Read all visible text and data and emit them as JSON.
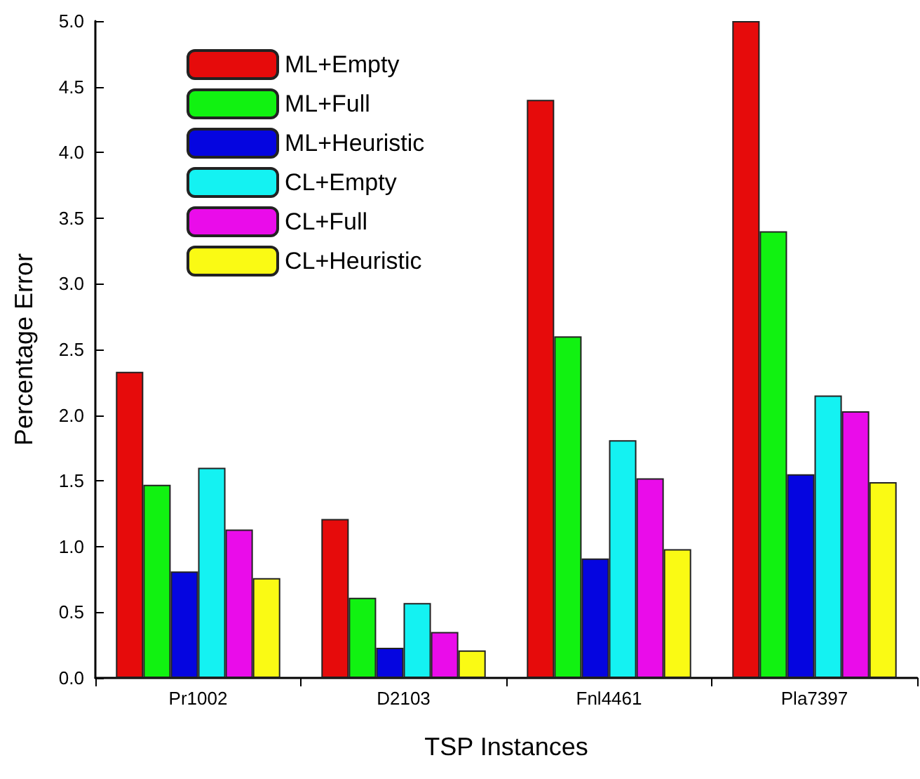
{
  "chart_data": {
    "type": "bar",
    "xlabel": "TSP Instances",
    "ylabel": "Percentage Error",
    "categories": [
      "Pr1002",
      "D2103",
      "Fnl4461",
      "Pla7397"
    ],
    "series": [
      {
        "name": "ML+Empty",
        "color": "#e60b0b",
        "values": [
          2.33,
          1.21,
          4.4,
          5.0
        ]
      },
      {
        "name": "ML+Full",
        "color": "#11f211",
        "values": [
          1.47,
          0.61,
          2.6,
          3.4
        ]
      },
      {
        "name": "ML+Heuristic",
        "color": "#0505e0",
        "values": [
          0.81,
          0.23,
          0.91,
          1.55
        ]
      },
      {
        "name": "CL+Empty",
        "color": "#14f2f2",
        "values": [
          1.6,
          0.57,
          1.81,
          2.15
        ]
      },
      {
        "name": "CL+Full",
        "color": "#ea0cea",
        "values": [
          1.13,
          0.35,
          1.52,
          2.03
        ]
      },
      {
        "name": "CL+Heuristic",
        "color": "#fafa14",
        "values": [
          0.76,
          0.21,
          0.98,
          1.49
        ]
      }
    ],
    "ylim": [
      0,
      5
    ],
    "yticks": [
      {
        "value": 0,
        "label": "0.0"
      },
      {
        "value": 0.5,
        "label": "0.5"
      },
      {
        "value": 1,
        "label": "1.0"
      },
      {
        "value": 1.5,
        "label": "1.5"
      },
      {
        "value": 2,
        "label": "2.0"
      },
      {
        "value": 2.5,
        "label": "2.5"
      },
      {
        "value": 3,
        "label": "3.0"
      },
      {
        "value": 3.5,
        "label": "3.5"
      },
      {
        "value": 4,
        "label": "4.0"
      },
      {
        "value": 4.5,
        "label": "4.5"
      },
      {
        "value": 5,
        "label": "5.0"
      }
    ],
    "grid": false,
    "legend": "top left"
  }
}
